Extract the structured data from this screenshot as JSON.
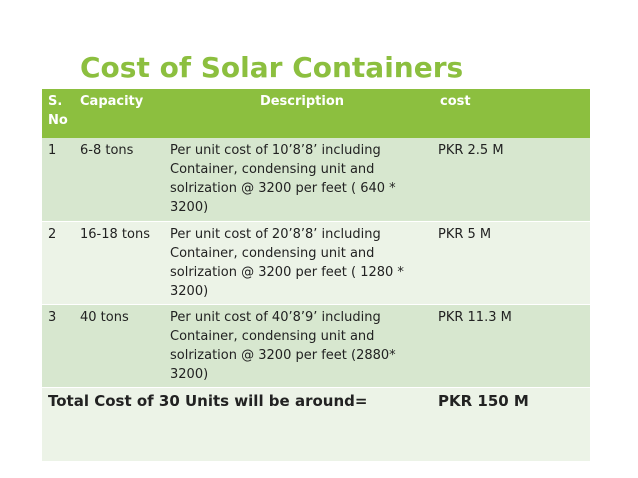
{
  "slide": {
    "title": "Cost of Solar Containers"
  },
  "table": {
    "headers": {
      "sno": "S. No",
      "capacity": "Capacity",
      "description": "Description",
      "cost": "cost"
    },
    "rows": [
      {
        "sno": "1",
        "capacity": "6-8 tons",
        "description": "Per unit cost of 10’8’8’  including Container, condensing unit and solrization @ 3200 per feet ( 640 * 3200)",
        "cost": " PKR 2.5 M"
      },
      {
        "sno": "2",
        "capacity": "16-18 tons",
        "description": " Per unit cost of 20’8’8’  including Container, condensing unit and solrization @ 3200 per feet ( 1280 * 3200)",
        "cost": "PKR 5 M"
      },
      {
        "sno": "3",
        "capacity": "40 tons",
        "description": "Per unit cost of 40’8’9’  including Container, condensing unit and solrization @ 3200 per feet (2880* 3200)",
        "cost": "PKR 11.3 M"
      }
    ],
    "total": {
      "label": "Total  Cost of 30  Units will be around=",
      "value": "PKR 150 M"
    }
  },
  "colors": {
    "accent": "#8cbf3f",
    "row_odd": "#d7e7cf",
    "row_even": "#ecf3e7"
  }
}
